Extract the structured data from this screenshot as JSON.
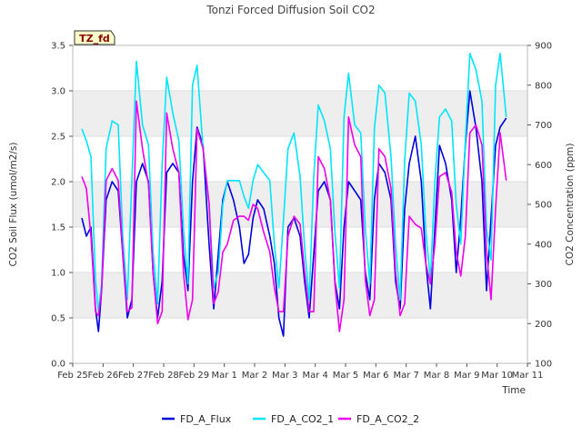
{
  "chart_data": {
    "type": "line",
    "title": "Tonzi Forced Diffusion Soil CO2",
    "xlabel": "Time",
    "ylabel": "CO2 Soil Flux (umol/m2/s)",
    "y2label": "CO2 Concentration (ppm)",
    "site_label": "TZ_fd",
    "x_ticks": [
      "Feb 25",
      "Feb 26",
      "Feb 27",
      "Feb 28",
      "Feb 29",
      "Mar 1",
      "Mar 2",
      "Mar 3",
      "Mar 4",
      "Mar 5",
      "Mar 6",
      "Mar 7",
      "Mar 8",
      "Mar 9",
      "Mar 10",
      "Mar 11"
    ],
    "xlim": [
      0,
      15
    ],
    "ylim": [
      0,
      3.5
    ],
    "y_ticks": [
      "0.0",
      "0.5",
      "1.0",
      "1.5",
      "2.0",
      "2.5",
      "3.0",
      "3.5"
    ],
    "y2lim": [
      100,
      900
    ],
    "y2_ticks": [
      "100",
      "200",
      "300",
      "400",
      "500",
      "600",
      "700",
      "800",
      "900"
    ],
    "grid": true,
    "legend_position": "bottom",
    "series": [
      {
        "name": "FD_A_Flux",
        "axis": "left",
        "color": "#0000dd",
        "x": [
          0.3,
          0.45,
          0.6,
          0.75,
          0.85,
          0.95,
          1.1,
          1.3,
          1.5,
          1.65,
          1.8,
          1.95,
          2.1,
          2.3,
          2.5,
          2.65,
          2.8,
          2.95,
          3.1,
          3.3,
          3.5,
          3.65,
          3.8,
          3.95,
          4.1,
          4.3,
          4.5,
          4.65,
          4.8,
          4.95,
          5.1,
          5.3,
          5.5,
          5.65,
          5.8,
          5.95,
          6.1,
          6.3,
          6.5,
          6.65,
          6.8,
          6.95,
          7.1,
          7.3,
          7.5,
          7.65,
          7.8,
          7.95,
          8.1,
          8.3,
          8.5,
          8.65,
          8.8,
          8.95,
          9.1,
          9.3,
          9.5,
          9.65,
          9.8,
          9.95,
          10.1,
          10.3,
          10.5,
          10.65,
          10.8,
          10.95,
          11.1,
          11.3,
          11.5,
          11.65,
          11.8,
          11.95,
          12.1,
          12.3,
          12.5,
          12.65,
          12.8,
          12.95,
          13.1,
          13.3,
          13.5,
          13.65,
          13.8,
          13.95,
          14.1,
          14.3
        ],
        "values": [
          1.6,
          1.4,
          1.5,
          0.6,
          0.35,
          0.8,
          1.8,
          2.0,
          1.9,
          1.2,
          0.5,
          0.7,
          2.0,
          2.2,
          2.0,
          1.0,
          0.5,
          0.9,
          2.1,
          2.2,
          2.1,
          1.2,
          0.8,
          2.0,
          2.6,
          2.4,
          1.3,
          0.6,
          1.2,
          1.8,
          2.0,
          1.8,
          1.5,
          1.1,
          1.2,
          1.6,
          1.8,
          1.7,
          1.4,
          1.1,
          0.5,
          0.3,
          1.5,
          1.6,
          1.4,
          0.9,
          0.5,
          1.2,
          1.9,
          2.0,
          1.8,
          0.9,
          0.6,
          1.5,
          2.0,
          1.9,
          1.8,
          1.0,
          0.7,
          1.8,
          2.2,
          2.1,
          1.8,
          0.9,
          0.6,
          1.7,
          2.2,
          2.5,
          2.0,
          1.1,
          0.6,
          1.5,
          2.4,
          2.2,
          1.8,
          1.0,
          1.6,
          2.4,
          3.0,
          2.6,
          2.0,
          0.8,
          1.6,
          2.4,
          2.6,
          2.7
        ]
      },
      {
        "name": "FD_A_CO2_1",
        "axis": "right",
        "color": "#00e5ff",
        "x": [
          0.3,
          0.45,
          0.6,
          0.75,
          0.85,
          0.95,
          1.1,
          1.3,
          1.5,
          1.65,
          1.8,
          1.95,
          2.1,
          2.3,
          2.5,
          2.65,
          2.8,
          2.95,
          3.1,
          3.3,
          3.5,
          3.65,
          3.8,
          3.95,
          4.1,
          4.3,
          4.5,
          4.65,
          4.8,
          4.95,
          5.1,
          5.3,
          5.5,
          5.65,
          5.8,
          5.95,
          6.1,
          6.3,
          6.5,
          6.65,
          6.8,
          6.95,
          7.1,
          7.3,
          7.5,
          7.65,
          7.8,
          7.95,
          8.1,
          8.3,
          8.5,
          8.65,
          8.8,
          8.95,
          9.1,
          9.3,
          9.5,
          9.65,
          9.8,
          9.95,
          10.1,
          10.3,
          10.5,
          10.65,
          10.8,
          10.95,
          11.1,
          11.3,
          11.5,
          11.65,
          11.8,
          11.95,
          12.1,
          12.3,
          12.5,
          12.65,
          12.8,
          12.95,
          13.1,
          13.3,
          13.5,
          13.65,
          13.8,
          13.95,
          14.1,
          14.3
        ],
        "values": [
          690,
          660,
          620,
          310,
          230,
          300,
          640,
          710,
          700,
          420,
          260,
          560,
          860,
          700,
          650,
          380,
          250,
          600,
          820,
          730,
          660,
          440,
          300,
          800,
          850,
          640,
          500,
          290,
          330,
          500,
          560,
          560,
          560,
          520,
          490,
          560,
          600,
          580,
          560,
          400,
          290,
          460,
          640,
          680,
          570,
          390,
          260,
          570,
          750,
          710,
          640,
          430,
          290,
          720,
          830,
          700,
          680,
          440,
          300,
          690,
          800,
          780,
          620,
          400,
          260,
          610,
          780,
          760,
          650,
          430,
          310,
          560,
          720,
          740,
          710,
          500,
          400,
          660,
          880,
          840,
          760,
          440,
          360,
          800,
          880,
          720
        ]
      },
      {
        "name": "FD_A_CO2_2",
        "axis": "right",
        "color": "#ee00ee",
        "x": [
          0.3,
          0.45,
          0.6,
          0.75,
          0.85,
          0.95,
          1.1,
          1.3,
          1.5,
          1.65,
          1.8,
          1.95,
          2.1,
          2.3,
          2.5,
          2.65,
          2.8,
          2.95,
          3.1,
          3.3,
          3.5,
          3.65,
          3.8,
          3.95,
          4.1,
          4.3,
          4.5,
          4.65,
          4.8,
          4.95,
          5.1,
          5.3,
          5.5,
          5.65,
          5.8,
          5.95,
          6.1,
          6.3,
          6.5,
          6.65,
          6.8,
          6.95,
          7.1,
          7.3,
          7.5,
          7.65,
          7.8,
          7.95,
          8.1,
          8.3,
          8.5,
          8.65,
          8.8,
          8.95,
          9.1,
          9.3,
          9.5,
          9.65,
          9.8,
          9.95,
          10.1,
          10.3,
          10.5,
          10.65,
          10.8,
          10.95,
          11.1,
          11.3,
          11.5,
          11.65,
          11.8,
          11.95,
          12.1,
          12.3,
          12.5,
          12.65,
          12.8,
          12.95,
          13.1,
          13.3,
          13.5,
          13.65,
          13.8,
          13.95,
          14.1,
          14.3
        ],
        "values": [
          570,
          540,
          420,
          230,
          220,
          280,
          560,
          590,
          560,
          380,
          230,
          240,
          760,
          640,
          550,
          330,
          200,
          230,
          730,
          640,
          580,
          330,
          210,
          260,
          690,
          640,
          500,
          250,
          280,
          380,
          400,
          460,
          470,
          470,
          460,
          500,
          490,
          430,
          380,
          290,
          230,
          230,
          420,
          470,
          450,
          330,
          230,
          230,
          620,
          590,
          510,
          300,
          180,
          260,
          720,
          650,
          620,
          310,
          220,
          260,
          640,
          620,
          540,
          330,
          220,
          250,
          470,
          450,
          440,
          350,
          300,
          400,
          570,
          580,
          530,
          380,
          320,
          420,
          680,
          700,
          650,
          380,
          260,
          490,
          680,
          560
        ]
      }
    ]
  }
}
